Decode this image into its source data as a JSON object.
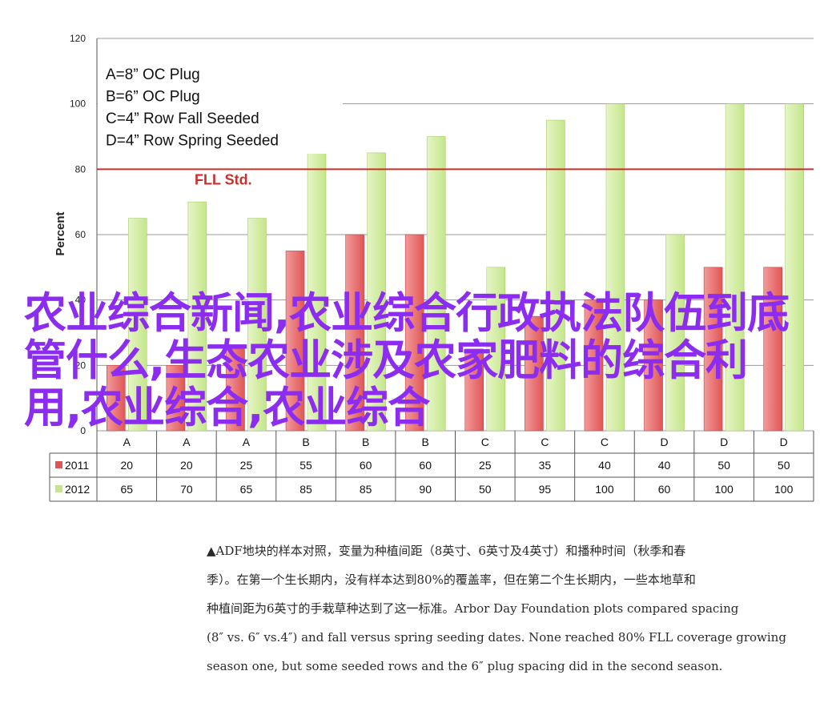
{
  "chart_data": {
    "type": "bar",
    "ylabel": "Percent",
    "ylim": [
      0,
      120
    ],
    "yticks": [
      0,
      20,
      40,
      60,
      80,
      100,
      120
    ],
    "grid": true,
    "categories": [
      "A",
      "A",
      "A",
      "B",
      "B",
      "B",
      "C",
      "C",
      "C",
      "D",
      "D",
      "D"
    ],
    "series": [
      {
        "name": "2011",
        "color": "#e05656",
        "values": [
          20,
          20,
          25,
          55,
          60,
          60,
          25,
          35,
          40,
          40,
          50,
          50
        ]
      },
      {
        "name": "2012",
        "color": "#c4e68a",
        "values": [
          65,
          70,
          65,
          85,
          85,
          90,
          50,
          95,
          100,
          60,
          100,
          100
        ]
      }
    ],
    "legend_box": [
      "A=8” OC Plug",
      "B=6” OC Plug",
      "C=4” Row Fall Seeded",
      "D=4” Row Spring Seeded"
    ],
    "reference_line": {
      "value": 80,
      "label": "FLL Std.",
      "color": "#c8312b"
    },
    "data_table": true
  },
  "overlay_title": "农业综合新闻,农业综合行政执法队伍到底管什么,生态农业涉及农家肥料的综合利用,农业综合,农业综合",
  "caption": "▲ADF地块的样本对照，变量为种植间距（8英寸、6英寸及4英寸）和播种时间（秋季和春\n季）。在第一个生长期内，没有样本达到80%的覆盖率，但在第二个生长期内，一些本地草和\n种植间距为6英寸的手栽草种达到了这一标准。Arbor Day Foundation plots compared spacing\n(8″ vs. 6″ vs.4″) and fall versus spring seeding dates. None reached 80% FLL coverage growing\nseason one, but some seeded rows and the 6″ plug spacing did in the second season."
}
